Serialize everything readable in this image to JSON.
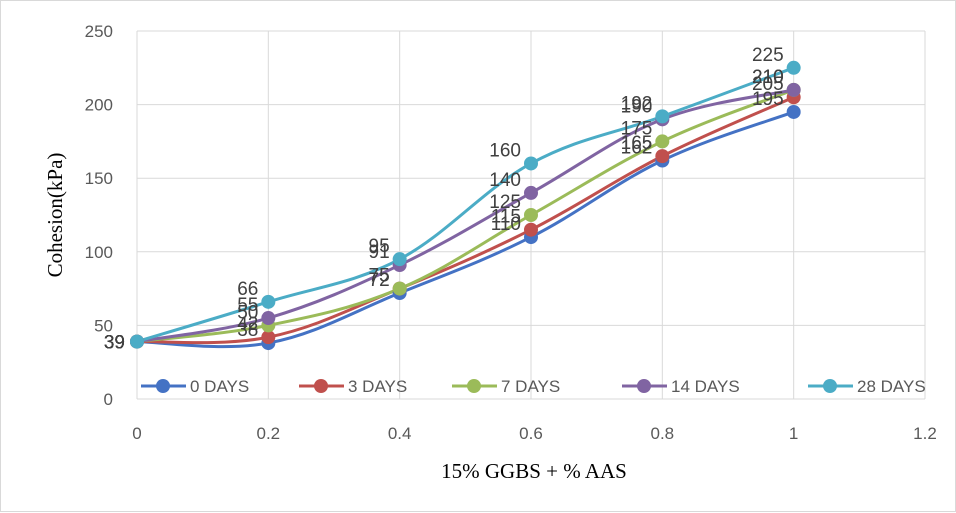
{
  "chart_data": {
    "type": "scatter",
    "xlabel": "15% GGBS + % AAS",
    "ylabel": "Cohesion(kPa)",
    "xlim": [
      0,
      1.2
    ],
    "ylim": [
      0,
      250
    ],
    "xticks": [
      "0",
      "0.2",
      "0.4",
      "0.6",
      "0.8",
      "1",
      "1.2"
    ],
    "yticks": [
      "0",
      "50",
      "100",
      "150",
      "200",
      "250"
    ],
    "grid": true,
    "legend_position": "bottom",
    "x": [
      0,
      0.2,
      0.4,
      0.6,
      0.8,
      1
    ],
    "series": [
      {
        "name": "0 DAYS",
        "color": "#4472C4",
        "values": [
          39,
          38,
          72,
          110,
          162,
          195
        ],
        "labels": [
          "39",
          "38",
          "72",
          "110",
          "162",
          "195"
        ]
      },
      {
        "name": "3 DAYS",
        "color": "#C0504D",
        "values": [
          39,
          42,
          75,
          115,
          165,
          205
        ],
        "labels": [
          "39",
          "42",
          "75",
          "115",
          "165",
          "205"
        ]
      },
      {
        "name": "7 DAYS",
        "color": "#9BBB59",
        "values": [
          39,
          50,
          75,
          125,
          175,
          210
        ],
        "labels": [
          "39",
          "50",
          "75",
          "125",
          "175",
          "210"
        ]
      },
      {
        "name": "14 DAYS",
        "color": "#8064A2",
        "values": [
          39,
          55,
          91,
          140,
          190,
          210
        ],
        "labels": [
          "39",
          "55",
          "91",
          "140",
          "190",
          "210"
        ]
      },
      {
        "name": "28 DAYS",
        "color": "#4BACC6",
        "values": [
          39,
          66,
          95,
          160,
          192,
          225
        ],
        "labels": [
          "39",
          "66",
          "95",
          "160",
          "192",
          "225"
        ]
      }
    ]
  }
}
